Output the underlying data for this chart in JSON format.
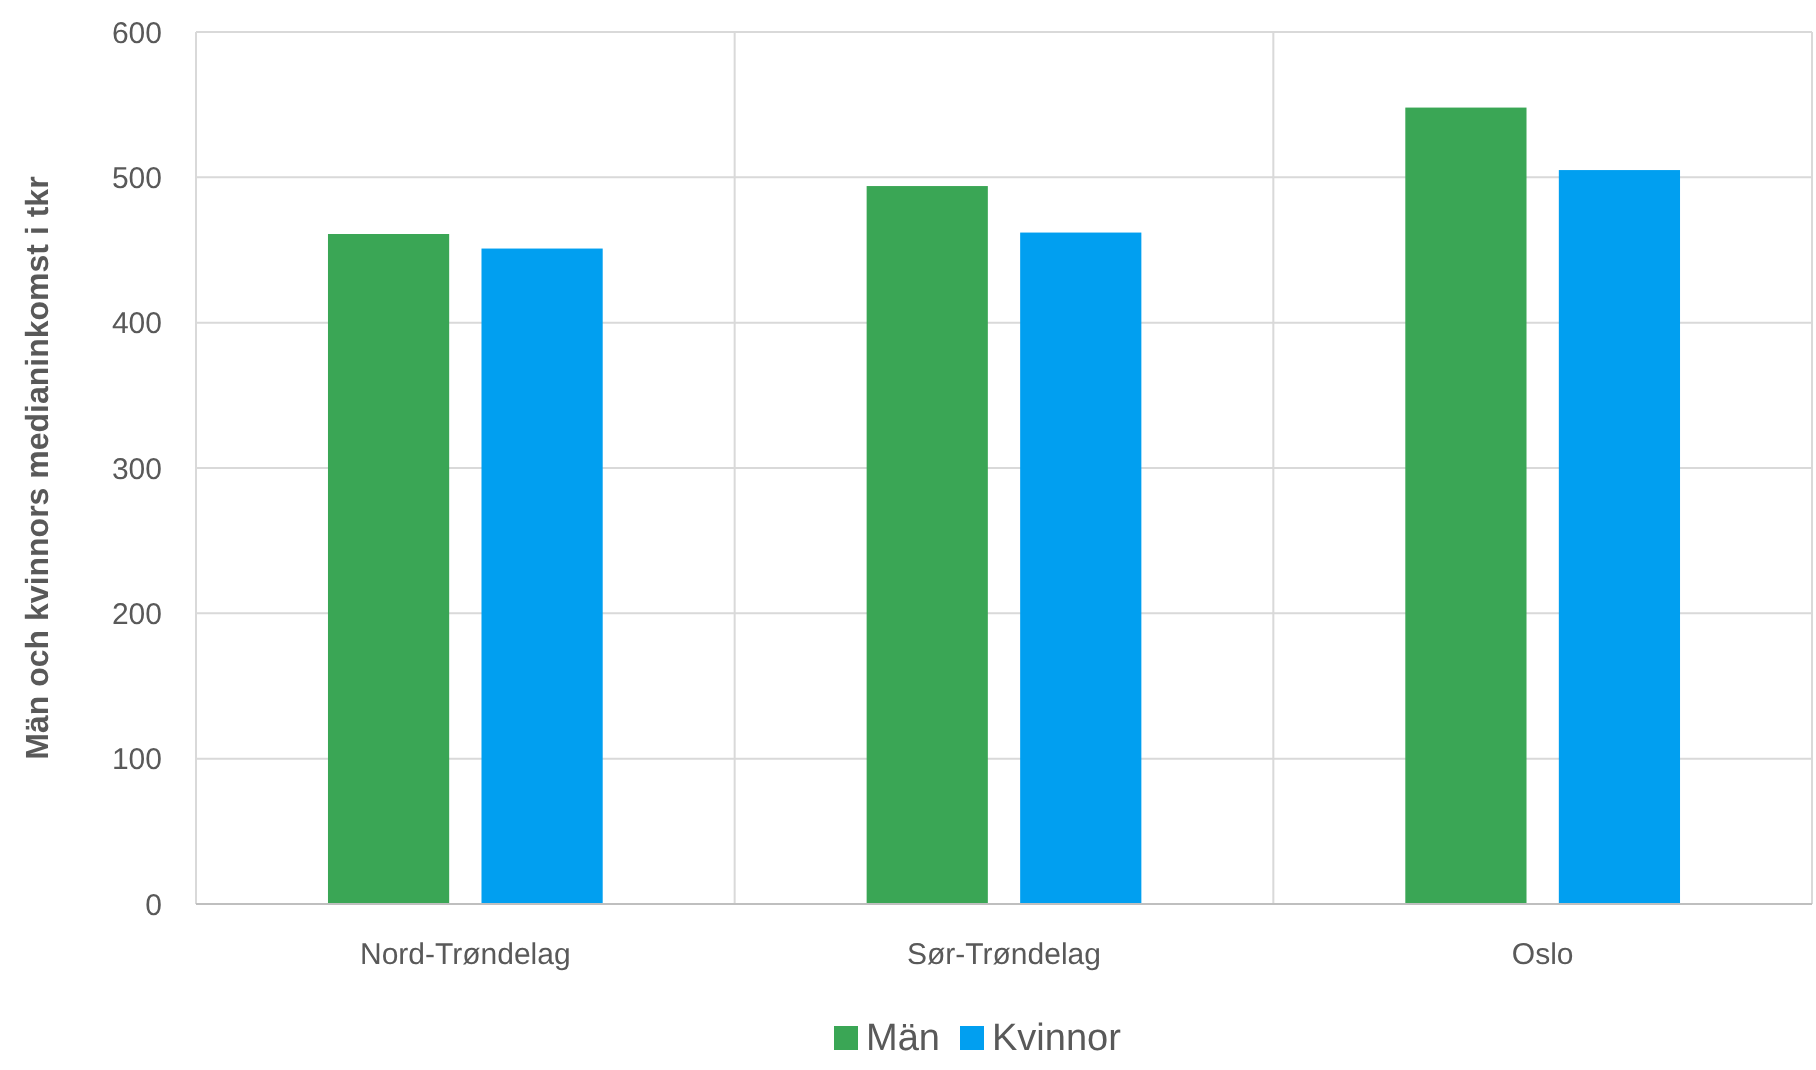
{
  "chart_data": {
    "type": "bar",
    "ylabel": "Män och kvinnors medianinkomst i tkr",
    "categories": [
      "Nord-Trøndelag",
      "Sør-Trøndelag",
      "Oslo"
    ],
    "series": [
      {
        "name": "Män",
        "color": "#3aa655",
        "values": [
          461,
          494,
          548
        ]
      },
      {
        "name": "Kvinnor",
        "color": "#019ff0",
        "values": [
          451,
          462,
          505
        ]
      }
    ],
    "ylim": [
      0,
      600
    ],
    "yticks": [
      0,
      100,
      200,
      300,
      400,
      500,
      600
    ],
    "grid": true,
    "legend": "bottom"
  }
}
